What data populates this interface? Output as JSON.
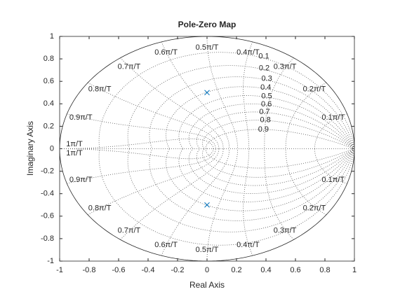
{
  "chart_data": {
    "type": "pole-zero",
    "title": "Pole-Zero Map",
    "x_label": "Real Axis",
    "y_label": "Imaginary Axis",
    "x": [
      0,
      0
    ],
    "values": [
      0.5,
      -0.5
    ],
    "color": "#0072bd",
    "marker": "x",
    "xlim": [
      -1,
      1
    ],
    "ylim": [
      -1,
      1
    ],
    "xticks": [
      -1,
      -0.8,
      -0.6,
      -0.4,
      -0.2,
      0,
      0.2,
      0.4,
      0.6,
      0.8,
      1
    ],
    "yticks": [
      -1,
      -0.8,
      -0.6,
      -0.4,
      -0.2,
      0,
      0.2,
      0.4,
      0.6,
      0.8,
      1
    ],
    "grid": true,
    "damping": [
      0.1,
      0.2,
      0.3,
      0.4,
      0.5,
      0.6,
      0.7,
      0.8,
      0.9
    ],
    "frequencies": [
      {
        "value": 0.1,
        "label": "0.1π/T"
      },
      {
        "value": 0.2,
        "label": "0.2π/T"
      },
      {
        "value": 0.3,
        "label": "0.3π/T"
      },
      {
        "value": 0.4,
        "label": "0.4π/T"
      },
      {
        "value": 0.5,
        "label": "0.5π/T"
      },
      {
        "value": 0.6,
        "label": "0.6π/T"
      },
      {
        "value": 0.7,
        "label": "0.7π/T"
      },
      {
        "value": 0.8,
        "label": "0.8π/T"
      },
      {
        "value": 0.9,
        "label": "0.9π/T"
      },
      {
        "value": 1,
        "label": "1π/T"
      }
    ]
  }
}
